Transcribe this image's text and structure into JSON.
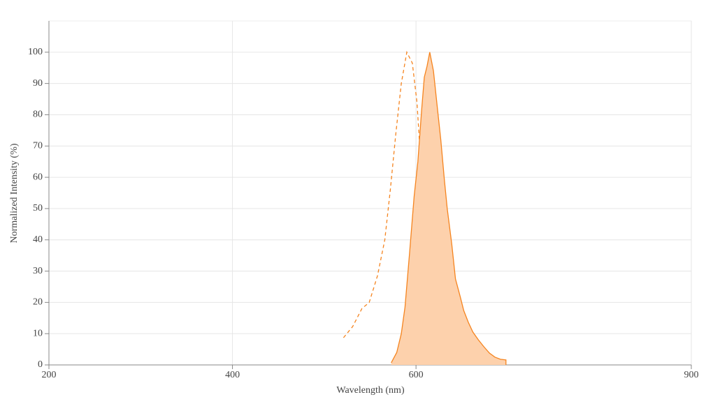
{
  "chart_data": {
    "type": "line",
    "xlabel": "Wavelength (nm)",
    "ylabel": "Normalized Intensity (%)",
    "xlim": [
      200,
      900
    ],
    "xticks": [
      200,
      400,
      600,
      900
    ],
    "ylim": [
      0,
      110
    ],
    "yticks": [
      0,
      10,
      20,
      30,
      40,
      50,
      60,
      70,
      80,
      90,
      100
    ],
    "grid": true,
    "series": [
      {
        "color": "#f5841f",
        "dashed": true,
        "fill": null,
        "x": [
          521,
          531,
          541,
          549,
          558,
          566,
          572,
          578,
          584,
          590,
          596,
          601,
          606,
          610,
          615,
          618,
          623,
          627
        ],
        "values": [
          8.7,
          12.3,
          18,
          20,
          28.5,
          40,
          56,
          74,
          90,
          100,
          96.5,
          84,
          61,
          45,
          30,
          18.5,
          12,
          1
        ]
      },
      {
        "color": "#f5841f",
        "dashed": false,
        "fill": "#fdd1ac",
        "x": [
          573,
          579,
          584,
          588,
          593,
          598,
          602,
          606,
          609,
          612,
          615,
          619,
          623,
          627,
          631,
          634,
          639,
          643,
          648,
          652,
          657,
          662,
          668,
          674,
          680,
          686,
          692,
          698,
          698
        ],
        "values": [
          0.7,
          4,
          10,
          18.5,
          36,
          54,
          65,
          81,
          92,
          95.5,
          100,
          94,
          83,
          72,
          59,
          50,
          38.6,
          27.5,
          22,
          17.4,
          13.6,
          10.5,
          8,
          5.8,
          3.8,
          2.5,
          1.8,
          1.6,
          0
        ]
      }
    ]
  }
}
